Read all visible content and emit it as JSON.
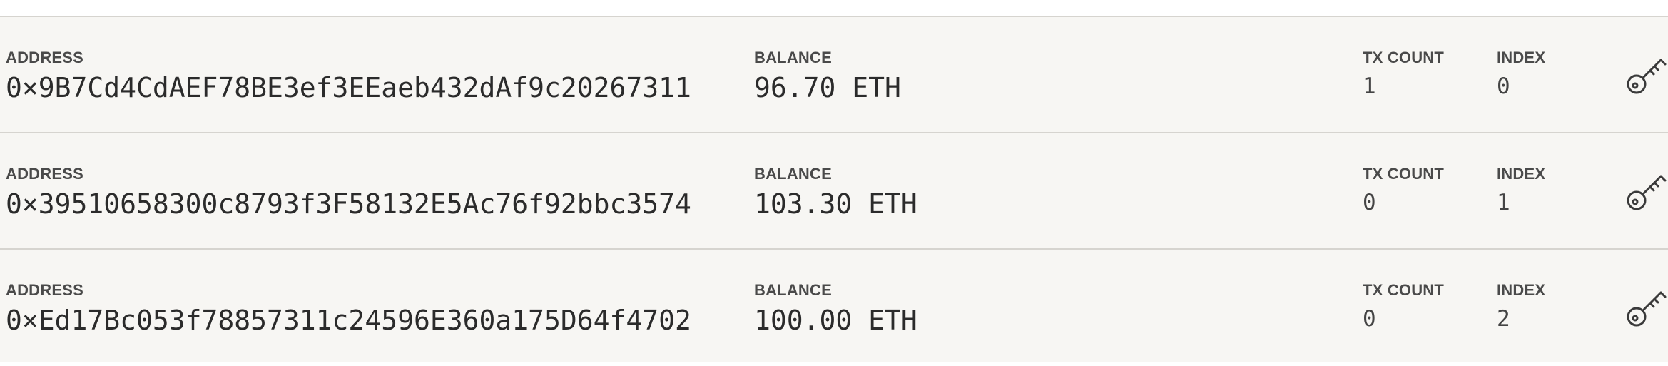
{
  "accounts": [
    {
      "address_label": "ADDRESS",
      "address": "0×9B7Cd4CdAEF78BE3ef3EEaeb432dAf9c20267311",
      "balance_label": "BALANCE",
      "balance": "96.70 ETH",
      "tx_count_label": "TX COUNT",
      "tx_count": "1",
      "index_label": "INDEX",
      "index": "0",
      "key_icon": "key-icon"
    },
    {
      "address_label": "ADDRESS",
      "address": "0×39510658300c8793f3F58132E5Ac76f92bbc3574",
      "balance_label": "BALANCE",
      "balance": "103.30 ETH",
      "tx_count_label": "TX COUNT",
      "tx_count": "0",
      "index_label": "INDEX",
      "index": "1",
      "key_icon": "key-icon"
    },
    {
      "address_label": "ADDRESS",
      "address": "0×Ed17Bc053f78857311c24596E360a175D64f4702",
      "balance_label": "BALANCE",
      "balance": "100.00 ETH",
      "tx_count_label": "TX COUNT",
      "tx_count": "0",
      "index_label": "INDEX",
      "index": "2",
      "key_icon": "key-icon"
    }
  ],
  "colors": {
    "row_background": "#f7f6f3",
    "divider": "#d6d4cf",
    "label_text": "#4a4a4a",
    "value_text": "#2b2b2b"
  }
}
